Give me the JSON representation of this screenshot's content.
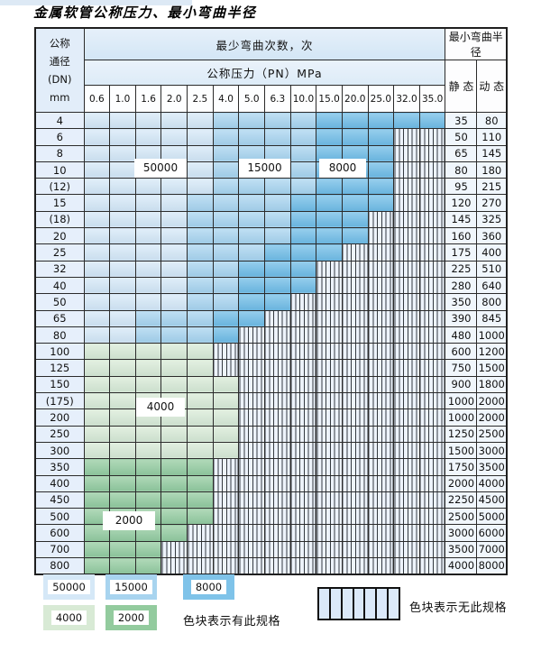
{
  "title": "金属软管公称压力、最小弯曲半径",
  "colors": {
    "c50000": "#d5e8f7",
    "c15000": "#a8d4ef",
    "c8000": "#6fbce6",
    "c8000legend": "#7fc3e9",
    "c4000": "#d8ead5",
    "c2000": "#93cb9e",
    "stripe_bg": "#edf3fb"
  },
  "table": {
    "header": {
      "dn_lines": [
        "公称",
        "通径",
        "(DN)",
        "mm"
      ],
      "bend_cycles": "最少弯曲次数，次",
      "pressure": "公称压力（PN）MPa",
      "pressures": [
        "0.6",
        "1.0",
        "1.6",
        "2.0",
        "2.5",
        "4.0",
        "5.0",
        "6.3",
        "10.0",
        "15.0",
        "20.0",
        "25.0",
        "32.0",
        "35.0"
      ],
      "min_radius": "最小弯曲半径",
      "static": "静 态",
      "dynamic": "动 态"
    },
    "cell_legend": {
      "A": "50000",
      "B": "15000",
      "C": "8000",
      "D": "4000",
      "E": "2000",
      "X": "无此规格"
    },
    "rows": [
      {
        "dn": "4",
        "cells": "AAAAABBBBCCCCC",
        "static": "35",
        "dynamic": "80"
      },
      {
        "dn": "6",
        "cells": "AAAAABBBBCCCXX",
        "static": "50",
        "dynamic": "110"
      },
      {
        "dn": "8",
        "cells": "AAAAABBBBCCCXX",
        "static": "65",
        "dynamic": "145"
      },
      {
        "dn": "10",
        "cells": "AAAAABBBBCCCXX",
        "static": "80",
        "dynamic": "180"
      },
      {
        "dn": "(12)",
        "cells": "AAAAABBBBCCCXX",
        "static": "95",
        "dynamic": "215"
      },
      {
        "dn": "15",
        "cells": "AAAABBBBCCCCXX",
        "static": "120",
        "dynamic": "270"
      },
      {
        "dn": "(18)",
        "cells": "AAAABBBBCCCXXX",
        "static": "145",
        "dynamic": "325"
      },
      {
        "dn": "20",
        "cells": "AAAABBBBCCCXXX",
        "static": "160",
        "dynamic": "360"
      },
      {
        "dn": "25",
        "cells": "AAAABBBCCCXXXX",
        "static": "175",
        "dynamic": "400"
      },
      {
        "dn": "32",
        "cells": "AAAABBCCCXXXXX",
        "static": "225",
        "dynamic": "510"
      },
      {
        "dn": "40",
        "cells": "AAAABBCCCXXXXX",
        "static": "280",
        "dynamic": "640"
      },
      {
        "dn": "50",
        "cells": "AAAABBCCXXXXXX",
        "static": "350",
        "dynamic": "800"
      },
      {
        "dn": "65",
        "cells": "AABBBCCXXXXXXX",
        "static": "390",
        "dynamic": "845"
      },
      {
        "dn": "80",
        "cells": "AABBBCXXXXXXXX",
        "static": "480",
        "dynamic": "1000"
      },
      {
        "dn": "100",
        "cells": "DDDDDXXXXXXXXX",
        "static": "600",
        "dynamic": "1200"
      },
      {
        "dn": "125",
        "cells": "DDDDDXXXXXXXXX",
        "static": "750",
        "dynamic": "1500"
      },
      {
        "dn": "150",
        "cells": "DDDDDDXXXXXXXX",
        "static": "900",
        "dynamic": "1800"
      },
      {
        "dn": "(175)",
        "cells": "DDDDDDXXXXXXXX",
        "static": "1000",
        "dynamic": "2000"
      },
      {
        "dn": "200",
        "cells": "DDDDDDXXXXXXXX",
        "static": "1000",
        "dynamic": "2000"
      },
      {
        "dn": "250",
        "cells": "DDDDDDXXXXXXXX",
        "static": "1250",
        "dynamic": "2500"
      },
      {
        "dn": "300",
        "cells": "DDDDDDXXXXXXXX",
        "static": "1500",
        "dynamic": "3000"
      },
      {
        "dn": "350",
        "cells": "EEEEEXXXXXXXXX",
        "static": "1750",
        "dynamic": "3500"
      },
      {
        "dn": "400",
        "cells": "EEEEEXXXXXXXXX",
        "static": "2000",
        "dynamic": "4000"
      },
      {
        "dn": "450",
        "cells": "EEEEEXXXXXXXXX",
        "static": "2250",
        "dynamic": "4500"
      },
      {
        "dn": "500",
        "cells": "EEEEEXXXXXXXXX",
        "static": "2500",
        "dynamic": "5000"
      },
      {
        "dn": "600",
        "cells": "EEEEXXXXXXXXXX",
        "static": "3000",
        "dynamic": "6000"
      },
      {
        "dn": "700",
        "cells": "EEEXXXXXXXXXXX",
        "static": "3500",
        "dynamic": "7000"
      },
      {
        "dn": "800",
        "cells": "EEEXXXXXXXXXXX",
        "static": "4000",
        "dynamic": "8000"
      }
    ]
  },
  "chips": [
    {
      "label": "50000"
    },
    {
      "label": "15000"
    },
    {
      "label": "8000"
    },
    {
      "label": "4000"
    },
    {
      "label": "2000"
    }
  ],
  "legend": {
    "swatches": [
      {
        "label": "50000",
        "key": "c50000"
      },
      {
        "label": "15000",
        "key": "c15000"
      },
      {
        "label": "8000",
        "key": "c8000legend"
      },
      {
        "label": "4000",
        "key": "c4000"
      },
      {
        "label": "2000",
        "key": "c2000"
      }
    ],
    "available_text": "色块表示有此规格",
    "unavailable_text": "色块表示无此规格"
  }
}
